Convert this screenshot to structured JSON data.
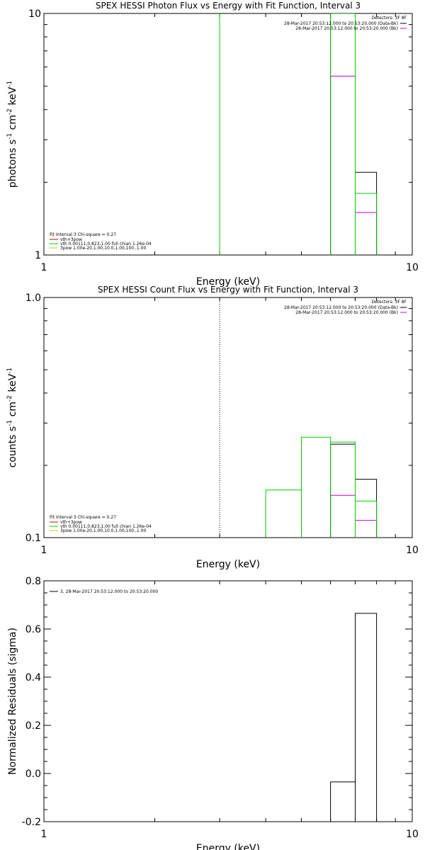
{
  "chart_data": [
    {
      "type": "line",
      "title": "SPEX HESSI Photon Flux vs Energy with Fit Function, Interval 3",
      "xlabel": "Energy (keV)",
      "ylabel_main": "photons s",
      "ylabel_mid1": " cm",
      "ylabel_mid2": " keV",
      "ylabel_sup1": "-1",
      "ylabel_sup2": "-2",
      "ylabel_sup3": "-1",
      "xscale": "log",
      "yscale": "log",
      "xlim": [
        1,
        10
      ],
      "ylim": [
        1,
        10
      ],
      "x_tick_labels": [
        {
          "v": 1,
          "label": "1"
        },
        {
          "v": 10,
          "label": "10"
        }
      ],
      "y_tick_labels": [
        {
          "v": 1,
          "label": "1"
        },
        {
          "v": 10,
          "label": "10"
        }
      ],
      "vline": {
        "x": 3.0,
        "color": "#00cc00",
        "style": "solid"
      },
      "legend_tr": {
        "header": "Detectors: 3F 8F",
        "entries": [
          {
            "text": "28-Mar-2017 20:53:12.000 to 20:53:20.000 (Data-Bk)",
            "color": "#000000"
          },
          {
            "text": "28-Mar-2017 20:53:12.000 to 20:53:20.000 (Bk)",
            "color": "#cc00cc"
          }
        ]
      },
      "legend_bl": {
        "header": "Fit Interval 3   Chi-square = 0.27",
        "entries": [
          {
            "text": "vth+3pow",
            "color": "#cc0000"
          },
          {
            "text": "vth 0.00111,0.823,1.00   full chian 1.26e-04",
            "color": "#00cc00"
          },
          {
            "text": "3pow 1.00e-20,1.00,10.0,1.00,100.,1.00",
            "color": "#cccc00"
          }
        ]
      },
      "series": [
        {
          "color": "#cc00cc",
          "edges": [
            6,
            7,
            8
          ],
          "values": [
            5.5,
            1.5
          ]
        },
        {
          "color": "#000000",
          "edges": [
            6,
            7,
            8
          ],
          "values": [
            10,
            2.2
          ]
        },
        {
          "color": "#00cc00",
          "edges": [
            6,
            7,
            8
          ],
          "values": [
            10,
            1.8
          ]
        }
      ]
    },
    {
      "type": "line",
      "title": "SPEX HESSI Count Flux vs Energy with Fit Function, Interval 3",
      "xlabel": "Energy (keV)",
      "ylabel_main": "counts s",
      "ylabel_mid1": " cm",
      "ylabel_mid2": " keV",
      "ylabel_sup1": "-1",
      "ylabel_sup2": "-2",
      "ylabel_sup3": "-1",
      "xscale": "log",
      "yscale": "log",
      "xlim": [
        1,
        10
      ],
      "ylim": [
        0.1,
        1.0
      ],
      "x_tick_labels": [
        {
          "v": 1,
          "label": "1"
        },
        {
          "v": 10,
          "label": "10"
        }
      ],
      "y_tick_labels": [
        {
          "v": 0.1,
          "label": "0.1"
        },
        {
          "v": 1.0,
          "label": "1.0"
        }
      ],
      "vline": {
        "x": 3.0,
        "color": "#000000",
        "style": "dotted"
      },
      "legend_tr": {
        "header": "Detectors: 3F 8F",
        "entries": [
          {
            "text": "28-Mar-2017 20:53:12.000 to 20:53:20.000 (Data-Bk)",
            "color": "#000000"
          },
          {
            "text": "28-Mar-2017 20:53:12.000 to 20:53:20.000 (Bk)",
            "color": "#cc00cc"
          }
        ]
      },
      "legend_bl": {
        "header": "Fit Interval 3   Chi-square = 0.27",
        "entries": [
          {
            "text": "vth+3pow",
            "color": "#cc0000"
          },
          {
            "text": "vth 0.00111,0.823,1.00   full chian 1.26e-04",
            "color": "#00cc00"
          },
          {
            "text": "3pow 1.00e-20,1.00,10.0,1.00,100.,1.00",
            "color": "#cccc00"
          }
        ]
      },
      "series": [
        {
          "color": "#cc00cc",
          "edges": [
            6,
            7,
            8
          ],
          "values": [
            0.15,
            0.118
          ]
        },
        {
          "color": "#000000",
          "edges": [
            6,
            7,
            8
          ],
          "values": [
            0.245,
            0.175
          ]
        },
        {
          "color": "#00cc00",
          "edges": [
            4,
            5,
            6,
            7,
            8
          ],
          "values": [
            0.158,
            0.262,
            0.25,
            0.142
          ]
        }
      ]
    },
    {
      "type": "line",
      "title": "",
      "xlabel": "Energy (keV)",
      "ylabel_main": "Normalized Residuals (sigma)",
      "xscale": "log",
      "yscale": "linear",
      "xlim": [
        1,
        10
      ],
      "ylim": [
        -0.2,
        0.8
      ],
      "x_tick_labels": [
        {
          "v": 1,
          "label": "1"
        },
        {
          "v": 10,
          "label": "10"
        }
      ],
      "y_tick_labels": [
        {
          "v": -0.2,
          "label": "-0.2"
        },
        {
          "v": 0.0,
          "label": "0.0"
        },
        {
          "v": 0.2,
          "label": "0.2"
        },
        {
          "v": 0.4,
          "label": "0.4"
        },
        {
          "v": 0.6,
          "label": "0.6"
        },
        {
          "v": 0.8,
          "label": "0.8"
        }
      ],
      "legend_tr": null,
      "legend_bl": null,
      "legend_tl": {
        "entries": [
          {
            "text": "3, 28-Mar-2017 20:53:12.000 to 20:53:20.000",
            "color": "#000000"
          }
        ]
      },
      "series": [
        {
          "color": "#000000",
          "edges": [
            6,
            7,
            8
          ],
          "values": [
            -0.035,
            0.665
          ],
          "baseline": -0.2
        }
      ]
    }
  ]
}
